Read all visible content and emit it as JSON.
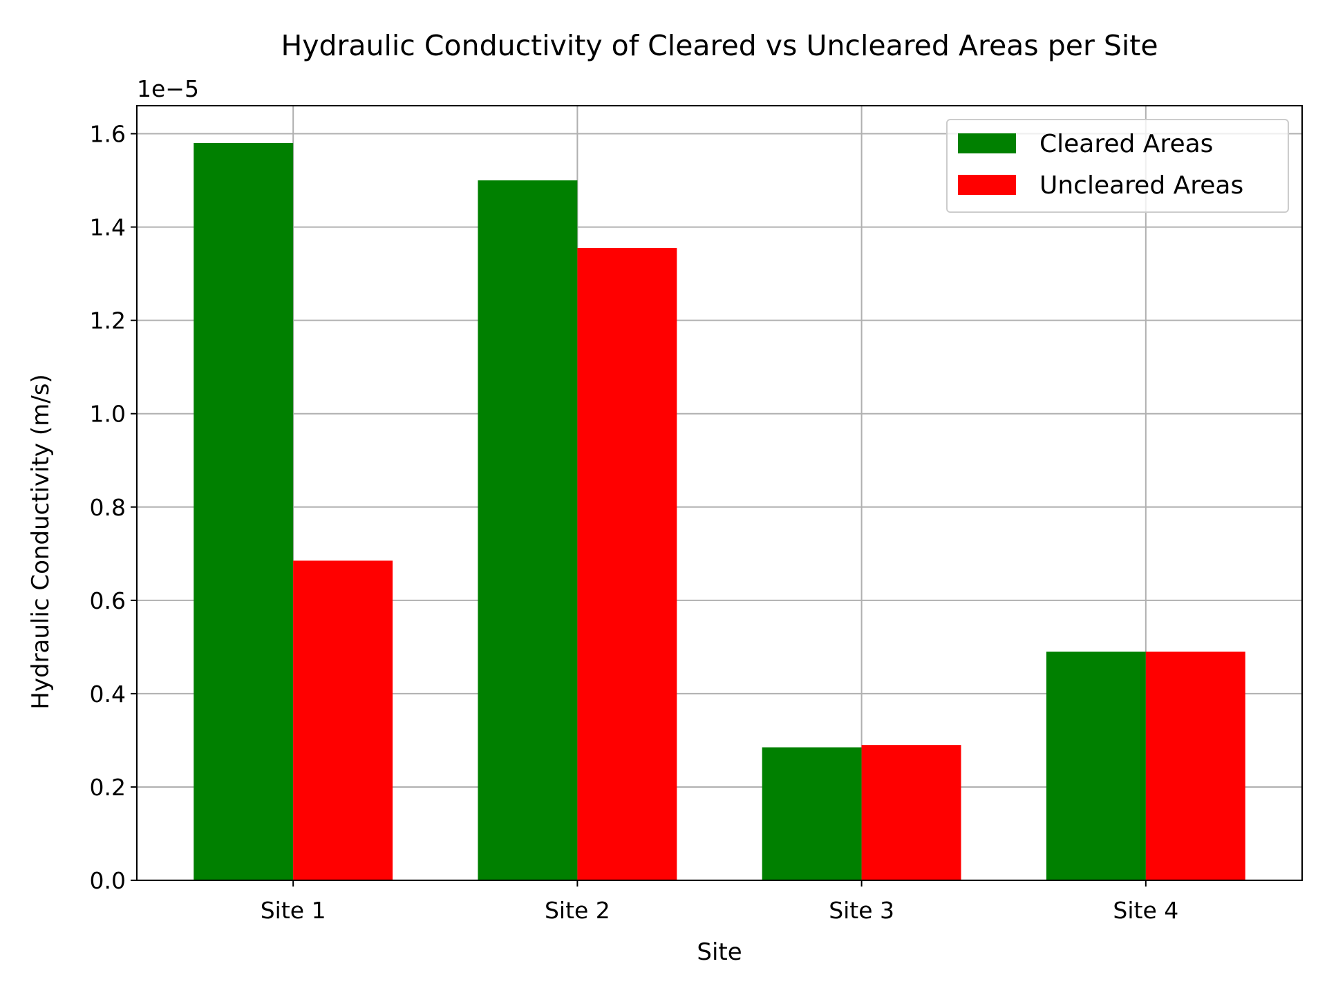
{
  "chart_data": {
    "type": "bar",
    "title": "Hydraulic Conductivity of Cleared vs Uncleared Areas per Site",
    "xlabel": "Site",
    "ylabel": "Hydraulic Conductivity (m/s)",
    "y_offset_label": "1e−5",
    "categories": [
      "Site 1",
      "Site 2",
      "Site 3",
      "Site 4"
    ],
    "y_ticks": [
      "0.0",
      "0.2",
      "0.4",
      "0.6",
      "0.8",
      "1.0",
      "1.2",
      "1.4",
      "1.6"
    ],
    "ylim": [
      0,
      1.66
    ],
    "grid": true,
    "legend_position": "top-right",
    "series": [
      {
        "name": "Cleared Areas",
        "color": "#008000",
        "values": [
          1.58,
          1.5,
          0.285,
          0.49
        ]
      },
      {
        "name": "Uncleared Areas",
        "color": "#ff0000",
        "values": [
          0.685,
          1.355,
          0.29,
          0.49
        ]
      }
    ]
  }
}
